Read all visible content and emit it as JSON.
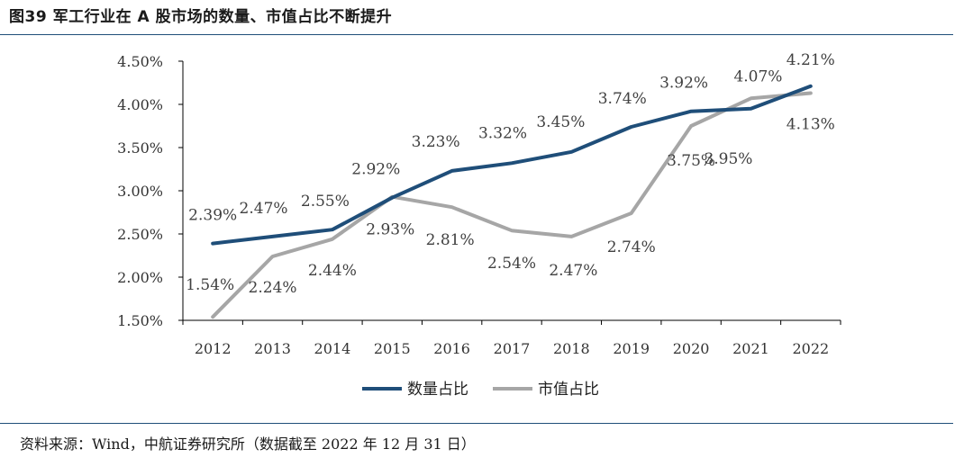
{
  "figure_title": "图39 军工行业在 A 股市场的数量、市值占比不断提升",
  "source_note": "资料来源：Wind，中航证券研究所（数据截至 2022 年 12 月 31 日）",
  "colors": {
    "series1": "#1f4e79",
    "series2": "#a6a6a6",
    "axis": "#000000",
    "rule": "#1f4e79"
  },
  "chart_data": {
    "type": "line",
    "title": "",
    "xlabel": "",
    "ylabel": "",
    "categories": [
      "2012",
      "2013",
      "2014",
      "2015",
      "2016",
      "2017",
      "2018",
      "2019",
      "2020",
      "2021",
      "2022"
    ],
    "ylim": [
      0.015,
      0.045
    ],
    "yticks": [
      "1.50%",
      "2.00%",
      "2.50%",
      "3.00%",
      "3.50%",
      "4.00%",
      "4.50%"
    ],
    "ytick_values": [
      0.015,
      0.02,
      0.025,
      0.03,
      0.035,
      0.04,
      0.045
    ],
    "legend_position": "bottom",
    "series": [
      {
        "name": "数量占比",
        "values": [
          0.0239,
          0.0247,
          0.0255,
          0.0292,
          0.0323,
          0.0332,
          0.0345,
          0.0374,
          0.0392,
          0.0395,
          0.0421
        ],
        "labels": [
          "2.39%",
          "2.47%",
          "2.55%",
          "2.92%",
          "3.23%",
          "3.32%",
          "3.45%",
          "3.74%",
          "3.92%",
          "3.95%",
          "4.21%"
        ]
      },
      {
        "name": "市值占比",
        "values": [
          0.0154,
          0.0224,
          0.0244,
          0.0293,
          0.0281,
          0.0254,
          0.0247,
          0.0274,
          0.0375,
          0.0407,
          0.0413
        ],
        "labels": [
          "1.54%",
          "2.24%",
          "2.44%",
          "2.93%",
          "2.81%",
          "2.54%",
          "2.47%",
          "2.74%",
          "3.75%",
          "4.07%",
          "4.13%"
        ]
      }
    ]
  }
}
